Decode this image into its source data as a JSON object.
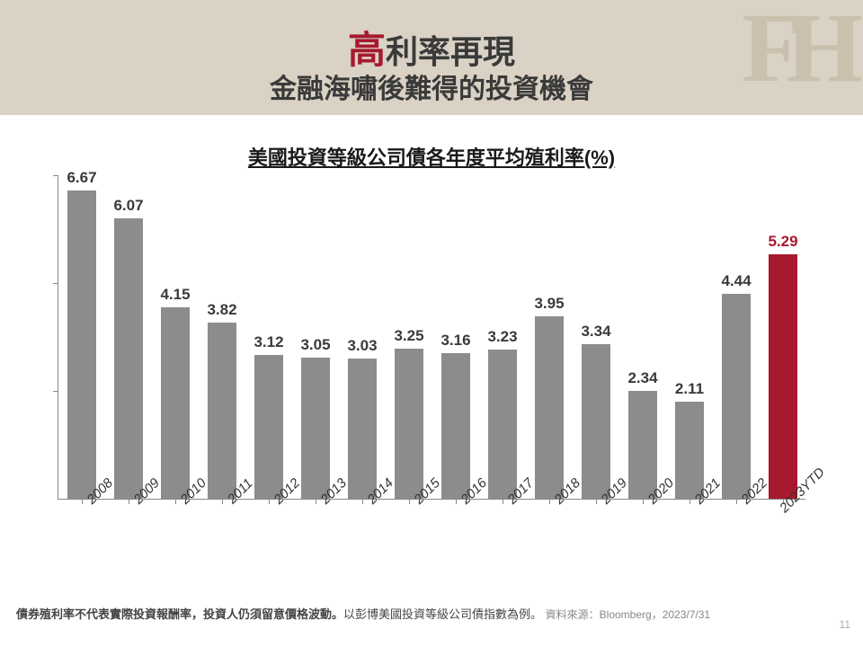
{
  "header": {
    "title_accent": "高",
    "title_rest": "利率再現",
    "subtitle": "金融海嘯後難得的投資機會",
    "band_color": "#d9d2c5",
    "accent_color": "#a6192e",
    "text_color": "#3a3a3a",
    "logo_text": "FH",
    "logo_color": "#c9c0ae"
  },
  "chart": {
    "type": "bar",
    "title": "美國投資等級公司債各年度平均殖利率(%)",
    "categories": [
      "2008",
      "2009",
      "2010",
      "2011",
      "2012",
      "2013",
      "2014",
      "2015",
      "2016",
      "2017",
      "2018",
      "2019",
      "2020",
      "2021",
      "2022",
      "2023YTD"
    ],
    "values": [
      6.67,
      6.07,
      4.15,
      3.82,
      3.12,
      3.05,
      3.03,
      3.25,
      3.16,
      3.23,
      3.95,
      3.34,
      2.34,
      2.11,
      4.44,
      5.29
    ],
    "bar_colors": [
      "#8c8c8c",
      "#8c8c8c",
      "#8c8c8c",
      "#8c8c8c",
      "#8c8c8c",
      "#8c8c8c",
      "#8c8c8c",
      "#8c8c8c",
      "#8c8c8c",
      "#8c8c8c",
      "#8c8c8c",
      "#8c8c8c",
      "#8c8c8c",
      "#8c8c8c",
      "#8c8c8c",
      "#a6192e"
    ],
    "label_colors": [
      "#3a3a3a",
      "#3a3a3a",
      "#3a3a3a",
      "#3a3a3a",
      "#3a3a3a",
      "#3a3a3a",
      "#3a3a3a",
      "#3a3a3a",
      "#3a3a3a",
      "#3a3a3a",
      "#3a3a3a",
      "#3a3a3a",
      "#3a3a3a",
      "#3a3a3a",
      "#3a3a3a",
      "#a6192e"
    ],
    "ylim": [
      0,
      7.0
    ],
    "bar_width": 0.62,
    "axis_color": "#888888",
    "category_label_fontsize": 15,
    "value_label_fontsize": 17,
    "title_fontsize": 22,
    "background_color": "#ffffff"
  },
  "footnote": {
    "bold_part": "債券殖利率不代表實際投資報酬率，投資人仍須留意價格波動。",
    "plain_part": "以彭博美國投資等級公司債指數為例。",
    "source": "資料來源：Bloomberg，2023/7/31"
  },
  "page_number": "11"
}
